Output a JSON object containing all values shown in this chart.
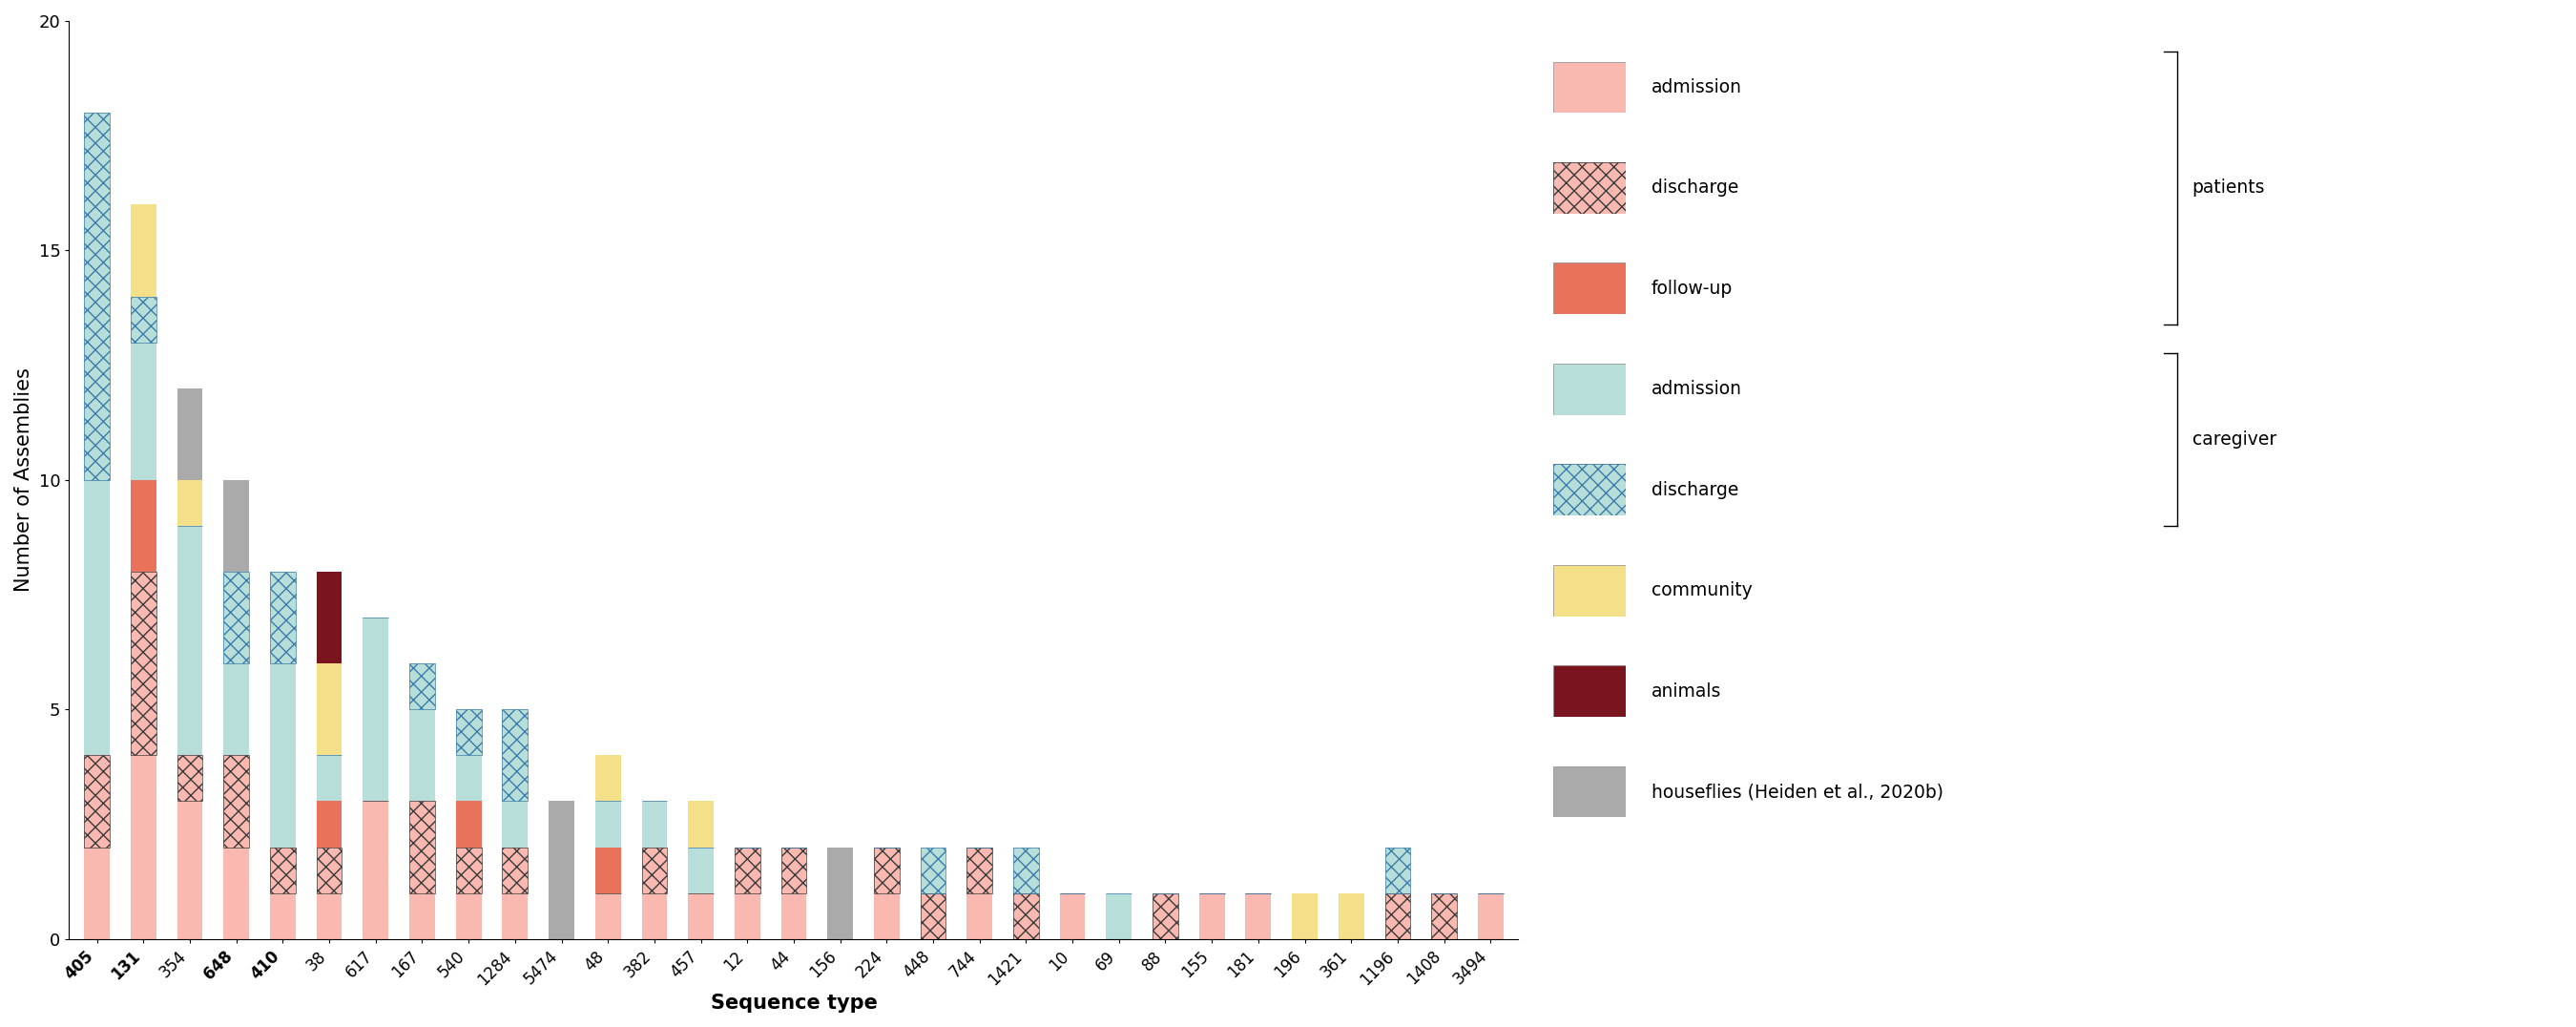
{
  "sequence_types": [
    "405",
    "131",
    "354",
    "648",
    "410",
    "38",
    "617",
    "167",
    "540",
    "1284",
    "5474",
    "48",
    "382",
    "457",
    "12",
    "44",
    "156",
    "224",
    "448",
    "744",
    "1421",
    "10",
    "69",
    "88",
    "155",
    "181",
    "196",
    "361",
    "1196",
    "1408",
    "3494"
  ],
  "bold_sts": [
    "405",
    "131",
    "648",
    "410"
  ],
  "categories": [
    "pat_admission",
    "pat_discharge",
    "pat_followup",
    "care_admission",
    "care_discharge",
    "community",
    "animals",
    "houseflies"
  ],
  "colors": {
    "pat_admission": "#f9b8b0",
    "pat_discharge_fg": "#3a3a3a",
    "pat_discharge_bg": "#f9b8b0",
    "pat_followup": "#e8735a",
    "care_admission": "#b8deda",
    "care_discharge_fg": "#3a7daa",
    "care_discharge_bg": "#b8deda",
    "community": "#f5e08a",
    "animals": "#7a1520",
    "houseflies": "#aaaaaa"
  },
  "data": {
    "405": {
      "pat_admission": 2,
      "pat_discharge": 2,
      "pat_followup": 0,
      "care_admission": 6,
      "care_discharge": 8,
      "community": 0,
      "animals": 0,
      "houseflies": 0
    },
    "131": {
      "pat_admission": 4,
      "pat_discharge": 4,
      "pat_followup": 2,
      "care_admission": 3,
      "care_discharge": 1,
      "community": 2,
      "animals": 0,
      "houseflies": 0
    },
    "354": {
      "pat_admission": 3,
      "pat_discharge": 1,
      "pat_followup": 0,
      "care_admission": 5,
      "care_discharge": 0,
      "community": 1,
      "animals": 0,
      "houseflies": 2
    },
    "648": {
      "pat_admission": 2,
      "pat_discharge": 2,
      "pat_followup": 0,
      "care_admission": 2,
      "care_discharge": 2,
      "community": 0,
      "animals": 0,
      "houseflies": 2
    },
    "410": {
      "pat_admission": 1,
      "pat_discharge": 1,
      "pat_followup": 0,
      "care_admission": 4,
      "care_discharge": 2,
      "community": 0,
      "animals": 0,
      "houseflies": 0
    },
    "38": {
      "pat_admission": 1,
      "pat_discharge": 1,
      "pat_followup": 1,
      "care_admission": 1,
      "care_discharge": 0,
      "community": 2,
      "animals": 2,
      "houseflies": 0
    },
    "617": {
      "pat_admission": 3,
      "pat_discharge": 0,
      "pat_followup": 0,
      "care_admission": 4,
      "care_discharge": 0,
      "community": 0,
      "animals": 0,
      "houseflies": 0
    },
    "167": {
      "pat_admission": 1,
      "pat_discharge": 2,
      "pat_followup": 0,
      "care_admission": 2,
      "care_discharge": 1,
      "community": 0,
      "animals": 0,
      "houseflies": 0
    },
    "540": {
      "pat_admission": 1,
      "pat_discharge": 1,
      "pat_followup": 1,
      "care_admission": 1,
      "care_discharge": 1,
      "community": 0,
      "animals": 0,
      "houseflies": 0
    },
    "1284": {
      "pat_admission": 1,
      "pat_discharge": 1,
      "pat_followup": 0,
      "care_admission": 1,
      "care_discharge": 2,
      "community": 0,
      "animals": 0,
      "houseflies": 0
    },
    "5474": {
      "pat_admission": 0,
      "pat_discharge": 0,
      "pat_followup": 0,
      "care_admission": 0,
      "care_discharge": 0,
      "community": 0,
      "animals": 0,
      "houseflies": 3
    },
    "48": {
      "pat_admission": 1,
      "pat_discharge": 0,
      "pat_followup": 1,
      "care_admission": 1,
      "care_discharge": 0,
      "community": 1,
      "animals": 0,
      "houseflies": 0
    },
    "382": {
      "pat_admission": 1,
      "pat_discharge": 1,
      "pat_followup": 0,
      "care_admission": 1,
      "care_discharge": 0,
      "community": 0,
      "animals": 0,
      "houseflies": 0
    },
    "457": {
      "pat_admission": 1,
      "pat_discharge": 0,
      "pat_followup": 0,
      "care_admission": 1,
      "care_discharge": 0,
      "community": 1,
      "animals": 0,
      "houseflies": 0
    },
    "12": {
      "pat_admission": 1,
      "pat_discharge": 1,
      "pat_followup": 0,
      "care_admission": 0,
      "care_discharge": 0,
      "community": 0,
      "animals": 0,
      "houseflies": 0
    },
    "44": {
      "pat_admission": 1,
      "pat_discharge": 1,
      "pat_followup": 0,
      "care_admission": 0,
      "care_discharge": 0,
      "community": 0,
      "animals": 0,
      "houseflies": 0
    },
    "156": {
      "pat_admission": 0,
      "pat_discharge": 0,
      "pat_followup": 0,
      "care_admission": 0,
      "care_discharge": 0,
      "community": 0,
      "animals": 0,
      "houseflies": 2
    },
    "224": {
      "pat_admission": 1,
      "pat_discharge": 1,
      "pat_followup": 0,
      "care_admission": 0,
      "care_discharge": 0,
      "community": 0,
      "animals": 0,
      "houseflies": 0
    },
    "448": {
      "pat_admission": 0,
      "pat_discharge": 1,
      "pat_followup": 0,
      "care_admission": 0,
      "care_discharge": 1,
      "community": 0,
      "animals": 0,
      "houseflies": 0
    },
    "744": {
      "pat_admission": 1,
      "pat_discharge": 1,
      "pat_followup": 0,
      "care_admission": 0,
      "care_discharge": 0,
      "community": 0,
      "animals": 0,
      "houseflies": 0
    },
    "1421": {
      "pat_admission": 0,
      "pat_discharge": 1,
      "pat_followup": 0,
      "care_admission": 0,
      "care_discharge": 1,
      "community": 0,
      "animals": 0,
      "houseflies": 0
    },
    "10": {
      "pat_admission": 1,
      "pat_discharge": 0,
      "pat_followup": 0,
      "care_admission": 0,
      "care_discharge": 0,
      "community": 0,
      "animals": 0,
      "houseflies": 0
    },
    "69": {
      "pat_admission": 0,
      "pat_discharge": 0,
      "pat_followup": 0,
      "care_admission": 1,
      "care_discharge": 0,
      "community": 0,
      "animals": 0,
      "houseflies": 0
    },
    "88": {
      "pat_admission": 0,
      "pat_discharge": 1,
      "pat_followup": 0,
      "care_admission": 0,
      "care_discharge": 0,
      "community": 0,
      "animals": 0,
      "houseflies": 0
    },
    "155": {
      "pat_admission": 1,
      "pat_discharge": 0,
      "pat_followup": 0,
      "care_admission": 0,
      "care_discharge": 0,
      "community": 0,
      "animals": 0,
      "houseflies": 0
    },
    "181": {
      "pat_admission": 1,
      "pat_discharge": 0,
      "pat_followup": 0,
      "care_admission": 0,
      "care_discharge": 0,
      "community": 0,
      "animals": 0,
      "houseflies": 0
    },
    "196": {
      "pat_admission": 0,
      "pat_discharge": 0,
      "pat_followup": 0,
      "care_admission": 0,
      "care_discharge": 0,
      "community": 1,
      "animals": 0,
      "houseflies": 0
    },
    "361": {
      "pat_admission": 0,
      "pat_discharge": 0,
      "pat_followup": 0,
      "care_admission": 0,
      "care_discharge": 0,
      "community": 1,
      "animals": 0,
      "houseflies": 0
    },
    "1196": {
      "pat_admission": 0,
      "pat_discharge": 1,
      "pat_followup": 0,
      "care_admission": 0,
      "care_discharge": 1,
      "community": 0,
      "animals": 0,
      "houseflies": 0
    },
    "1408": {
      "pat_admission": 0,
      "pat_discharge": 1,
      "pat_followup": 0,
      "care_admission": 0,
      "care_discharge": 0,
      "community": 0,
      "animals": 0,
      "houseflies": 0
    },
    "3494": {
      "pat_admission": 1,
      "pat_discharge": 0,
      "pat_followup": 0,
      "care_admission": 0,
      "care_discharge": 0,
      "community": 0,
      "animals": 0,
      "houseflies": 0
    }
  },
  "ylabel": "Number of Assemblies",
  "xlabel": "Sequence type",
  "ylim": [
    0,
    20
  ],
  "yticks": [
    0,
    5,
    10,
    15,
    20
  ],
  "background_color": "#ffffff"
}
